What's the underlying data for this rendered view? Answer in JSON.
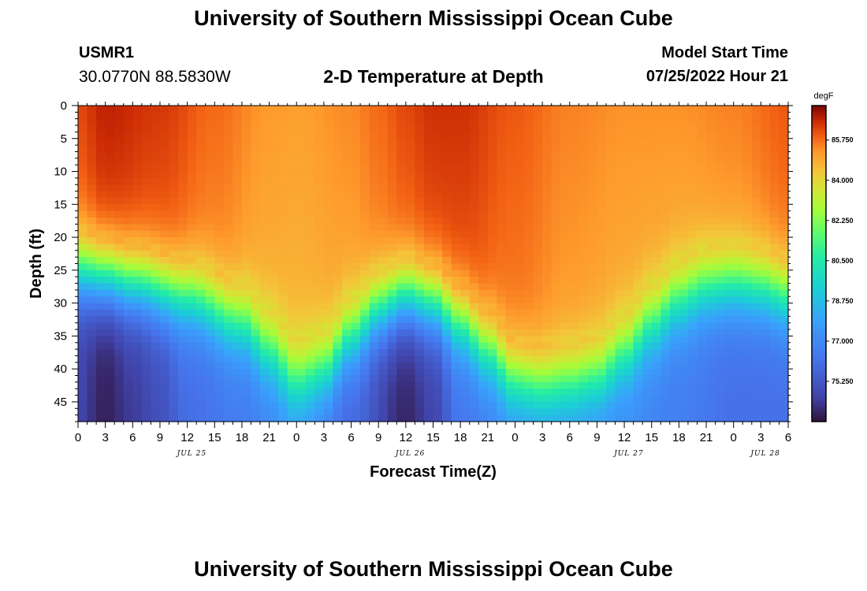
{
  "header": {
    "title": "University of Southern Mississippi Ocean Cube",
    "station_id": "USMR1",
    "station_coords": "30.0770N  88.5830W",
    "plot_title": "2-D Temperature at Depth",
    "model_start_label": "Model Start Time",
    "model_start_value": "07/25/2022 Hour 21"
  },
  "footer": {
    "title": "University of Southern Mississippi Ocean Cube"
  },
  "chart_data": {
    "type": "heatmap",
    "title": "2-D Temperature at Depth",
    "xlabel": "Forecast Time(Z)",
    "ylabel": "Depth (ft)",
    "x_hours_range": [
      0,
      78
    ],
    "x_tick_labels": [
      "0",
      "3",
      "6",
      "9",
      "12",
      "15",
      "18",
      "21",
      "0",
      "3",
      "6",
      "9",
      "12",
      "15",
      "18",
      "21",
      "0",
      "3",
      "6",
      "9",
      "12",
      "15",
      "18",
      "21",
      "0",
      "3",
      "6"
    ],
    "x_date_labels": [
      "JUL 25",
      "JUL 26",
      "JUL 27",
      "JUL 28"
    ],
    "x_date_hours": [
      12.5,
      36.5,
      60.5,
      75.5
    ],
    "y_range": [
      0,
      48
    ],
    "y_tick_values": [
      0,
      5,
      10,
      15,
      20,
      25,
      30,
      35,
      40,
      45
    ],
    "y_tick_labels": [
      "0",
      "5",
      "10",
      "15",
      "20",
      "25",
      "30",
      "35",
      "40",
      "45"
    ],
    "colorbar": {
      "unit": "degF",
      "min": 73.5,
      "max": 87.25,
      "tick_values": [
        85.75,
        84.0,
        82.25,
        80.5,
        78.75,
        77.0,
        75.25
      ],
      "tick_labels": [
        "85.750",
        "84.000",
        "82.250",
        "80.500",
        "78.750",
        "77.000",
        "75.250"
      ]
    },
    "thermocline_depth_by_hour": [
      [
        0,
        25
      ],
      [
        3,
        26
      ],
      [
        6,
        27
      ],
      [
        12,
        29
      ],
      [
        18,
        33
      ],
      [
        21,
        37
      ],
      [
        24,
        41.5
      ],
      [
        27,
        40
      ],
      [
        30,
        35
      ],
      [
        33,
        31
      ],
      [
        36,
        29
      ],
      [
        39,
        30
      ],
      [
        42,
        33
      ],
      [
        45,
        37
      ],
      [
        48,
        41.5
      ],
      [
        51,
        42.5
      ],
      [
        54,
        42
      ],
      [
        57,
        41
      ],
      [
        60,
        37.5
      ],
      [
        63,
        33
      ],
      [
        66,
        29.5
      ],
      [
        69,
        27.5
      ],
      [
        72,
        27
      ],
      [
        75,
        27.5
      ],
      [
        78,
        29
      ]
    ],
    "surface_temp_by_hour": [
      [
        0,
        86.2
      ],
      [
        3,
        86.7
      ],
      [
        9,
        86.4
      ],
      [
        15,
        85.8
      ],
      [
        21,
        85.2
      ],
      [
        24,
        85.1
      ],
      [
        30,
        85.4
      ],
      [
        33,
        85.8
      ],
      [
        36,
        86.2
      ],
      [
        39,
        86.5
      ],
      [
        42,
        86.5
      ],
      [
        48,
        86.0
      ],
      [
        54,
        85.5
      ],
      [
        60,
        85.3
      ],
      [
        66,
        85.3
      ],
      [
        72,
        85.5
      ],
      [
        78,
        86.0
      ]
    ],
    "bottom_temp_by_hour": [
      [
        0,
        74.6
      ],
      [
        3,
        73.8
      ],
      [
        6,
        74.4
      ],
      [
        9,
        75.0
      ],
      [
        12,
        76.0
      ],
      [
        18,
        76.5
      ],
      [
        24,
        77.3
      ],
      [
        30,
        75.8
      ],
      [
        36,
        73.9
      ],
      [
        39,
        74.6
      ],
      [
        42,
        76.3
      ],
      [
        48,
        77.1
      ],
      [
        54,
        77.2
      ],
      [
        60,
        77.1
      ],
      [
        66,
        76.6
      ],
      [
        72,
        76.1
      ],
      [
        78,
        76.1
      ]
    ]
  }
}
